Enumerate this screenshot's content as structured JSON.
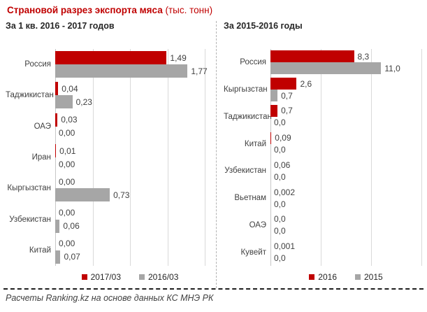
{
  "title": {
    "main": "Страновой разрез экспорта мяса",
    "unit": "(тыс. тонн)"
  },
  "footer": {
    "source": "Расчеты Ranking.kz на основе данных КС МНЭ РК"
  },
  "colors": {
    "accent_red": "#c00000",
    "bar_gray": "#a6a6a6",
    "gridline": "#d9d9d9",
    "axis": "#c6c6c6",
    "text": "#404040"
  },
  "chart_data": [
    {
      "type": "bar",
      "orientation": "horizontal",
      "title": "За 1 кв. 2016 - 2017 годов",
      "categories": [
        "Россия",
        "Таджикистан",
        "ОАЭ",
        "Иран",
        "Кыргызстан",
        "Узбекистан",
        "Китай"
      ],
      "series": [
        {
          "name": "2017/03",
          "color": "#c00000",
          "values": [
            1.49,
            0.04,
            0.03,
            0.01,
            0.0,
            0.0,
            0.0
          ],
          "labels": [
            "1,49",
            "0,04",
            "0,03",
            "0,01",
            "0,00",
            "0,00",
            "0,00"
          ]
        },
        {
          "name": "2016/03",
          "color": "#a6a6a6",
          "values": [
            1.77,
            0.23,
            0.0,
            0.0,
            0.73,
            0.06,
            0.07
          ],
          "labels": [
            "1,77",
            "0,23",
            "0,00",
            "0,00",
            "0,73",
            "0,06",
            "0,07"
          ]
        }
      ],
      "xlim": [
        0,
        2.0
      ],
      "grid_step": 0.5,
      "grid_on": true,
      "legend_position": "bottom"
    },
    {
      "type": "bar",
      "orientation": "horizontal",
      "title": "За 2015-2016 годы",
      "categories": [
        "Россия",
        "Кыргызстан",
        "Таджикистан",
        "Китай",
        "Узбекистан",
        "Вьетнам",
        "ОАЭ",
        "Кувейт"
      ],
      "series": [
        {
          "name": "2016",
          "color": "#c00000",
          "values": [
            8.3,
            2.6,
            0.7,
            0.09,
            0.06,
            0.002,
            0.0,
            0.001
          ],
          "labels": [
            "8,3",
            "2,6",
            "0,7",
            "0,09",
            "0,06",
            "0,002",
            "0,0",
            "0,001"
          ]
        },
        {
          "name": "2015",
          "color": "#a6a6a6",
          "values": [
            11.0,
            0.7,
            0.0,
            0.0,
            0.0,
            0.0,
            0.0,
            0.0
          ],
          "labels": [
            "11,0",
            "0,7",
            "0,0",
            "0,0",
            "0,0",
            "0,0",
            "0,0",
            "0,0"
          ]
        }
      ],
      "xlim": [
        0,
        15
      ],
      "grid_step": 5,
      "grid_on": true,
      "legend_position": "bottom"
    }
  ]
}
